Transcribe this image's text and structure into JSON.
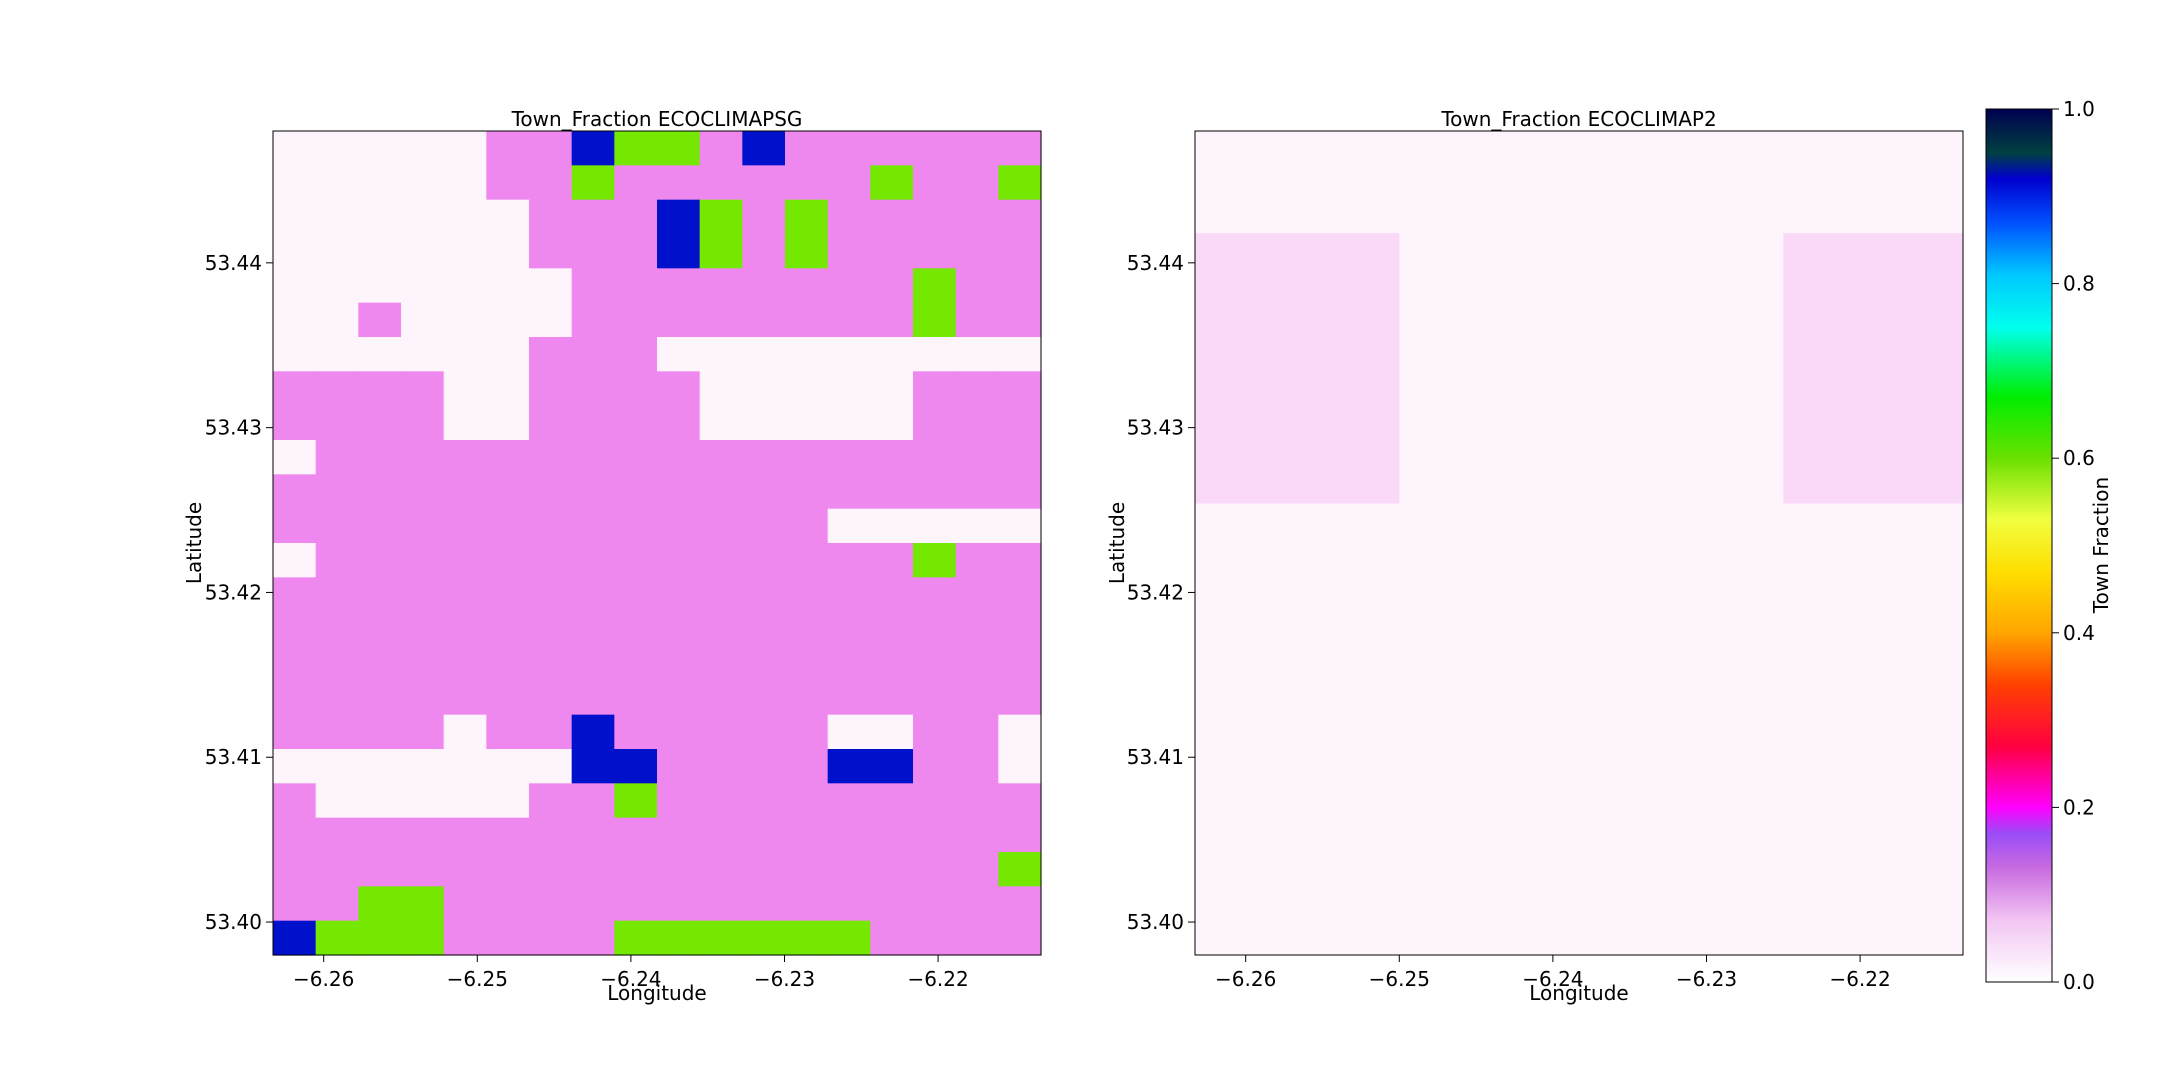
{
  "chart_data": [
    {
      "type": "heatmap",
      "title": "Town_Fraction ECOCLIMAPSG",
      "xlabel": "Longitude",
      "ylabel": "Latitude",
      "xlim": [
        -6.2633,
        -6.2133
      ],
      "ylim": [
        53.398,
        53.448
      ],
      "xticks": [
        -6.26,
        -6.25,
        -6.24,
        -6.23,
        -6.22
      ],
      "xtick_labels": [
        "−6.26",
        "−6.25",
        "−6.24",
        "−6.23",
        "−6.22"
      ],
      "yticks": [
        53.4,
        53.41,
        53.42,
        53.43,
        53.44
      ],
      "ytick_labels": [
        "53.40",
        "53.41",
        "53.42",
        "53.43",
        "53.44"
      ],
      "grid_rows_top_to_bottom": [
        "wwwwwwwwwwwwwwwwwwwwwwwwwwwwwwwwwwwwwwwww",
        "wwwwwppBGGpBppppppppp",
        "wwwwwppGppppppGppGppp",
        "wwwwwwpppBGpGpppppppp",
        "wwwwwwpppBGpGpppppppp",
        "wwwwwwwppppppppGppppp",
        "wwpwwwwppppppppGppppp",
        "wwwwwwpppwwwwwwwwwwww",
        "ppppwwppppwwwwwpppwww",
        "ppppwwppppwwwwwpppwww",
        "wpppppppppppppppppwww",
        "ppppppppppppppppppwww",
        "pppppppppppppwwwwwwww",
        "wppppppppppppppGpppwp",
        "pppppppppppppppppppp",
        "pppppppppppppppppppp",
        "ppppppppppppppppppppw",
        "pppppppppppppppppppww",
        "ppppwppBpppppwwppwwww",
        "wwwwwwwBBppppBBppwww",
        "pwwwwwppGppppppppppw",
        "pppppppppppppppppppp",
        "pppppppppppppppppGpp",
        "ppGGppppppppppppppppp",
        "BGGGppppGGGGGGpppppG"
      ],
      "legend_values": {
        "w": 0.0,
        "p": 0.1,
        "G": 0.6,
        "B": 0.9
      }
    },
    {
      "type": "heatmap",
      "title": "Town_Fraction ECOCLIMAP2",
      "xlabel": "Longitude",
      "ylabel": "Latitude",
      "xlim": [
        -6.2633,
        -6.2133
      ],
      "ylim": [
        53.398,
        53.448
      ],
      "xticks": [
        -6.26,
        -6.25,
        -6.24,
        -6.23,
        -6.22
      ],
      "xtick_labels": [
        "−6.26",
        "−6.25",
        "−6.24",
        "−6.23",
        "−6.22"
      ],
      "yticks": [
        53.4,
        53.41,
        53.42,
        53.43,
        53.44
      ],
      "ytick_labels": [
        "53.40",
        "53.41",
        "53.42",
        "53.43",
        "53.44"
      ],
      "cells": [
        {
          "lon0": -6.2633,
          "lon1": -6.2133,
          "lat0": 53.398,
          "lat1": 53.448,
          "value": 0.01
        },
        {
          "lon0": -6.2633,
          "lon1": -6.25,
          "lat0": 53.4254,
          "lat1": 53.4418,
          "value": 0.05
        },
        {
          "lon0": -6.225,
          "lon1": -6.2133,
          "lat0": 53.4254,
          "lat1": 53.4418,
          "value": 0.05
        }
      ]
    }
  ],
  "colorbar": {
    "label": "Town Fraction",
    "range": [
      0.0,
      1.0
    ],
    "ticks": [
      0.0,
      0.2,
      0.4,
      0.6,
      0.8,
      1.0
    ],
    "tick_labels": [
      "0.0",
      "0.2",
      "0.4",
      "0.6",
      "0.8",
      "1.0"
    ]
  },
  "colors": {
    "white": "#fdf4fc",
    "pink": "#ee88ee",
    "green": "#74e800",
    "blue": "#0011cc",
    "light_pink": "#f9d8f8"
  }
}
